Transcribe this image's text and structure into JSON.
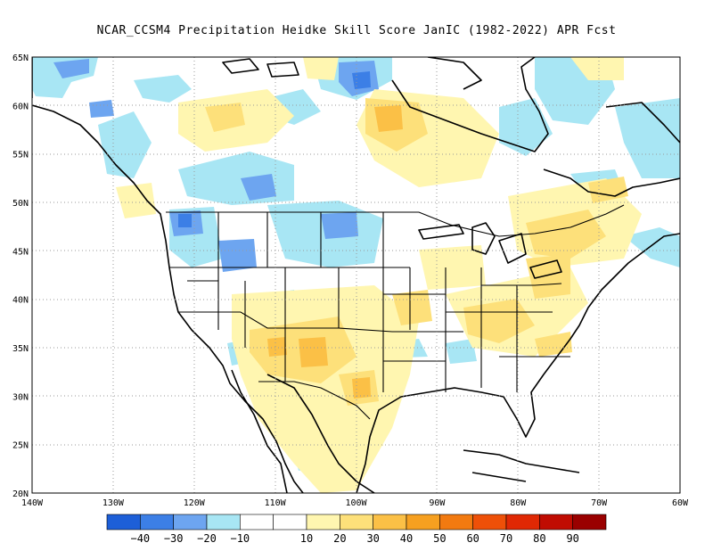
{
  "title": "NCAR_CCSM4  Precipitation Heidke Skill Score JanIC (1982-2022) APR Fcst",
  "map": {
    "lon_ticks": [
      "140W",
      "130W",
      "120W",
      "110W",
      "100W",
      "90W",
      "80W",
      "70W",
      "60W"
    ],
    "lat_ticks": [
      "65N",
      "60N",
      "55N",
      "50N",
      "45N",
      "40N",
      "35N",
      "30N",
      "25N",
      "20N"
    ],
    "lon_range": [
      -140,
      -60
    ],
    "lat_range": [
      20,
      65
    ],
    "gridlines": "dotted"
  },
  "colorbar": {
    "colors": [
      "#1d5fd8",
      "#3c7fe6",
      "#6da5f0",
      "#a8e6f4",
      "#ffffff",
      "#ffffff",
      "#fff6b0",
      "#fde07a",
      "#fbc046",
      "#f6a020",
      "#f27a10",
      "#ee5008",
      "#e02804",
      "#c00c02",
      "#9a0000"
    ],
    "labels": [
      "−40",
      "−30",
      "−20",
      "−10",
      "10",
      "20",
      "30",
      "40",
      "50",
      "60",
      "70",
      "80",
      "90"
    ]
  },
  "colors": {
    "neg_light": "#a8e6f4",
    "neg_mid": "#6da5f0",
    "neg_dark": "#3c7fe6",
    "pos_light": "#fff6b0",
    "pos_mid": "#fde07a",
    "pos_dark": "#fbc046"
  }
}
